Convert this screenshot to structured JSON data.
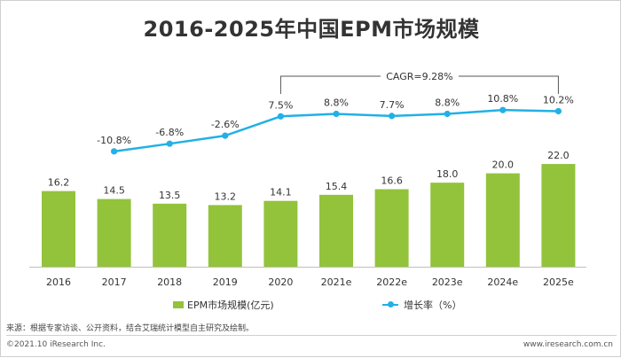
{
  "title": "2016-2025年中国EPM市场规模",
  "chart_data": {
    "type": "bar",
    "categories": [
      "2016",
      "2017",
      "2018",
      "2019",
      "2020",
      "2021e",
      "2022e",
      "2023e",
      "2024e",
      "2025e"
    ],
    "series": [
      {
        "name": "EPM市场规模(亿元)",
        "type": "bar",
        "values": [
          16.2,
          14.5,
          13.5,
          13.2,
          14.1,
          15.4,
          16.6,
          18.0,
          20.0,
          22.0
        ],
        "labels": [
          "16.2",
          "14.5",
          "13.5",
          "13.2",
          "14.1",
          "15.4",
          "16.6",
          "18.0",
          "20.0",
          "22.0"
        ]
      },
      {
        "name": "增长率（%）",
        "type": "line",
        "values": [
          null,
          -10.8,
          -6.8,
          -2.6,
          7.5,
          8.8,
          7.7,
          8.8,
          10.8,
          10.2
        ],
        "labels": [
          "",
          "-10.8%",
          "-6.8%",
          "-2.6%",
          "7.5%",
          "8.8%",
          "7.7%",
          "8.8%",
          "10.8%",
          "10.2%"
        ]
      }
    ],
    "annotation": {
      "text": "CAGR=9.28%",
      "from": "2020",
      "to": "2025e"
    },
    "legend_position": "bottom",
    "grid": false
  },
  "colors": {
    "bar": "#92c33b",
    "line": "#22b0e6",
    "text": "#333333",
    "axis": "#bfbfbf",
    "bracket": "#555555"
  },
  "source": "来源：根据专家访谈、公开资料，结合艾瑞统计模型自主研究及绘制。",
  "copyright": "©2021.10 iResearch Inc.",
  "website": "www.iresearch.com.cn"
}
